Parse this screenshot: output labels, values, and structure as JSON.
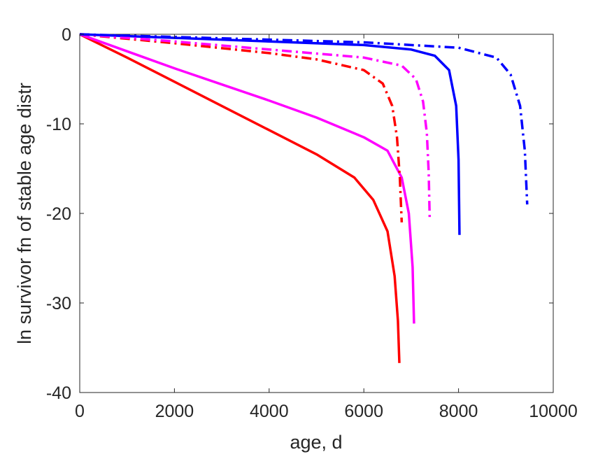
{
  "chart_data": {
    "type": "line",
    "title": "",
    "xlabel": "age, d",
    "ylabel": "ln survivor fn of stable age distr",
    "xlim": [
      0,
      10000
    ],
    "ylim": [
      -40,
      0
    ],
    "xticks": [
      0,
      2000,
      4000,
      6000,
      8000,
      10000
    ],
    "yticks": [
      -40,
      -30,
      -20,
      -10,
      0
    ],
    "xtick_labels": [
      "0",
      "2000",
      "4000",
      "6000",
      "8000",
      "10000"
    ],
    "ytick_labels": [
      "-40",
      "-30",
      "-20",
      "-10",
      "0"
    ],
    "grid": false,
    "legend": "none",
    "series": [
      {
        "color": "#ff0000",
        "style": "solid",
        "x": [
          0,
          1000,
          2000,
          3000,
          4000,
          5000,
          5800,
          6200,
          6500,
          6650,
          6720,
          6750
        ],
        "y": [
          0,
          -2.6,
          -5.3,
          -8.0,
          -10.7,
          -13.4,
          -16.0,
          -18.5,
          -22.0,
          -27.0,
          -32.0,
          -36.7
        ]
      },
      {
        "color": "#ff00ff",
        "style": "solid",
        "x": [
          0,
          1000,
          2000,
          3000,
          4000,
          5000,
          6000,
          6500,
          6800,
          6950,
          7030,
          7060
        ],
        "y": [
          0,
          -1.9,
          -3.8,
          -5.6,
          -7.4,
          -9.3,
          -11.5,
          -13.0,
          -16.0,
          -20.0,
          -26.0,
          -32.3
        ]
      },
      {
        "color": "#0000ff",
        "style": "solid",
        "x": [
          0,
          2000,
          4000,
          6000,
          7000,
          7500,
          7800,
          7950,
          8000,
          8020
        ],
        "y": [
          0,
          -0.4,
          -0.8,
          -1.2,
          -1.7,
          -2.4,
          -4.0,
          -8.0,
          -14.0,
          -22.4
        ]
      },
      {
        "color": "#ff0000",
        "style": "dashdot",
        "x": [
          0,
          2000,
          4000,
          5000,
          6000,
          6400,
          6600,
          6700,
          6760,
          6800
        ],
        "y": [
          0,
          -1.0,
          -2.1,
          -2.8,
          -4.0,
          -5.5,
          -8.0,
          -11.5,
          -16.0,
          -21.0
        ]
      },
      {
        "color": "#ff00ff",
        "style": "dashdot",
        "x": [
          0,
          2000,
          4000,
          6000,
          6800,
          7100,
          7250,
          7330,
          7370,
          7390
        ],
        "y": [
          0,
          -0.8,
          -1.7,
          -2.6,
          -3.5,
          -5.0,
          -7.5,
          -11.0,
          -15.5,
          -20.4
        ]
      },
      {
        "color": "#0000ff",
        "style": "dashdot",
        "x": [
          0,
          2000,
          4000,
          6000,
          8000,
          8800,
          9100,
          9300,
          9400,
          9450
        ],
        "y": [
          0,
          -0.3,
          -0.6,
          -0.9,
          -1.5,
          -2.6,
          -4.5,
          -8.0,
          -13.0,
          -19.0
        ]
      }
    ]
  }
}
